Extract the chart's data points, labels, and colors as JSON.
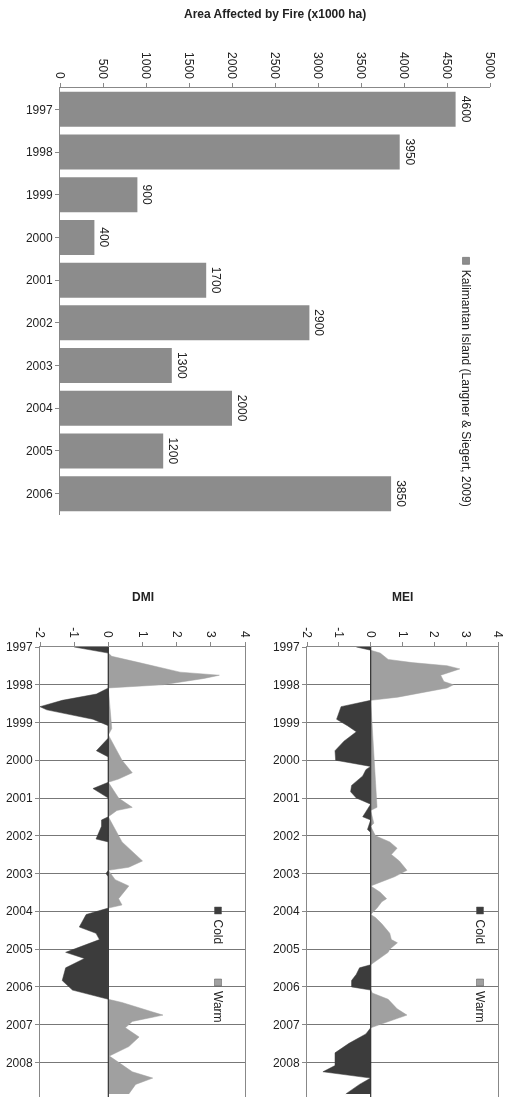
{
  "chart_data": [
    {
      "type": "bar",
      "title": "Area Affected by Fire (x1000 ha)",
      "orientation": "horizontal",
      "categories": [
        "1997",
        "1998",
        "1999",
        "2000",
        "2001",
        "2002",
        "2003",
        "2004",
        "2005",
        "2006"
      ],
      "series": [
        {
          "name": "Kalimantan Island (Langner & Siegert, 2009)",
          "color": "#8c8c8c",
          "values": [
            4600,
            3950,
            900,
            400,
            1700,
            2900,
            1300,
            2000,
            1200,
            3850
          ]
        }
      ],
      "xlim": [
        0,
        5000
      ],
      "xticks": [
        0,
        500,
        1000,
        1500,
        2000,
        2500,
        3000,
        3500,
        4000,
        4500,
        5000
      ],
      "data_labels": true,
      "legend": "right"
    },
    {
      "type": "area",
      "title": "MEI",
      "orientation": "horizontal",
      "series": [
        {
          "name": "Cold",
          "color": "#3c3c3c",
          "x": [
            "1997-01",
            "1997-02",
            "1998-06",
            "1998-08",
            "1998-12",
            "1999-02",
            "1999-04",
            "1999-07",
            "1999-10",
            "2000-01",
            "2000-03",
            "2000-04",
            "2000-06",
            "2000-09",
            "2000-11",
            "2001-01",
            "2001-03",
            "2001-07",
            "2001-08",
            "2001-11",
            "2001-12",
            "2005-06",
            "2005-07",
            "2005-09",
            "2005-11",
            "2006-01",
            "2006-02",
            "2007-02",
            "2007-04",
            "2007-07",
            "2007-10",
            "2008-02",
            "2008-04",
            "2008-06",
            "2008-08",
            "2008-11"
          ],
          "values": [
            -0.45,
            0,
            0,
            -0.93,
            -1.07,
            -0.73,
            -0.45,
            -0.84,
            -1.12,
            -1.1,
            0,
            -0.15,
            -0.25,
            -0.6,
            -0.63,
            -0.45,
            0,
            -0.25,
            0,
            -0.1,
            0,
            0,
            -0.35,
            -0.45,
            -0.6,
            -0.6,
            0,
            0,
            -0.15,
            -0.68,
            -1.12,
            -1.12,
            -1.5,
            0,
            -0.35,
            -0.78
          ]
        },
        {
          "name": "Warm",
          "color": "#a0a0a0",
          "x": [
            "1997-02",
            "1997-03",
            "1997-05",
            "1997-06",
            "1997-07",
            "1997-08",
            "1997-10",
            "1997-12",
            "1998-01",
            "1998-02",
            "1998-05",
            "1998-06",
            "2001-04",
            "2001-05",
            "2001-09",
            "2001-10",
            "2002-01",
            "2002-03",
            "2002-05",
            "2002-07",
            "2002-09",
            "2002-12",
            "2003-02",
            "2003-05",
            "2003-07",
            "2003-09",
            "2003-10",
            "2003-12",
            "2004-02",
            "2004-03",
            "2004-05",
            "2004-08",
            "2004-10",
            "2004-11",
            "2005-01",
            "2005-02",
            "2005-06",
            "2006-02",
            "2006-03",
            "2006-05",
            "2006-08",
            "2006-10",
            "2006-11",
            "2007-02"
          ],
          "values": [
            0,
            0.3,
            0.55,
            1.3,
            2.4,
            2.8,
            2.2,
            2.3,
            2.6,
            2.4,
            0.85,
            0,
            0.2,
            0,
            0.1,
            0,
            0.15,
            0.6,
            0.83,
            0.65,
            0.9,
            1.14,
            0.75,
            0,
            0.3,
            0.5,
            0.35,
            0.2,
            0,
            0.15,
            0.35,
            0.6,
            0.65,
            0.84,
            0.6,
            0.55,
            0,
            0,
            0.05,
            0.55,
            0.83,
            1.14,
            0.85,
            0
          ]
        }
      ],
      "xlim": [
        -2,
        4
      ],
      "xticks": [
        -2,
        -1,
        0,
        1,
        2,
        3,
        4
      ],
      "ylim": [
        "2008-12",
        "1997-01"
      ],
      "yticks": [
        "1997",
        "1998",
        "1999",
        "2000",
        "2001",
        "2002",
        "2003",
        "2004",
        "2005",
        "2006",
        "2007",
        "2008"
      ],
      "grid": "y",
      "legend": "right"
    },
    {
      "type": "area",
      "title": "DMI",
      "orientation": "horizontal",
      "series": [
        {
          "name": "Cold",
          "color": "#3c3c3c",
          "x": [
            "1997-01",
            "1997-03",
            "1998-02",
            "1998-04",
            "1998-06",
            "1998-08",
            "1998-09",
            "1998-12",
            "1999-02",
            "1999-06",
            "1999-10",
            "1999-12",
            "2000-08",
            "2000-10",
            "2001-01",
            "2001-07",
            "2001-08",
            "2001-10",
            "2002-02",
            "2002-03",
            "2002-12",
            "2003-01",
            "2003-02",
            "2003-12",
            "2004-02",
            "2004-06",
            "2004-08",
            "2004-10",
            "2005-02",
            "2005-04",
            "2005-07",
            "2005-11",
            "2006-02",
            "2006-05"
          ],
          "values": [
            -1.0,
            0,
            0,
            -0.35,
            -1.35,
            -2.0,
            -1.8,
            -0.45,
            0,
            0,
            -0.35,
            0,
            0,
            -0.45,
            0,
            0,
            -0.2,
            -0.2,
            -0.36,
            0,
            0,
            -0.07,
            0,
            0,
            -0.65,
            -0.85,
            -0.36,
            -0.26,
            -1.25,
            -0.7,
            -1.25,
            -1.35,
            -1.05,
            0
          ]
        },
        {
          "name": "Warm",
          "color": "#a0a0a0",
          "x": [
            "1997-03",
            "1997-04",
            "1997-06",
            "1997-09",
            "1997-10",
            "1997-11",
            "1998-01",
            "1998-02",
            "1999-03",
            "1999-05",
            "2000-01",
            "2000-05",
            "2000-07",
            "2000-08",
            "2001-01",
            "2001-04",
            "2001-05",
            "2001-07",
            "2002-03",
            "2002-09",
            "2002-11",
            "2002-12",
            "2003-03",
            "2003-05",
            "2003-09",
            "2003-11",
            "2003-12",
            "2006-05",
            "2006-06",
            "2006-09",
            "2006-10",
            "2006-12",
            "2007-02",
            "2007-05",
            "2007-08",
            "2007-11",
            "2008-01",
            "2008-04",
            "2008-06",
            "2008-08",
            "2008-11"
          ],
          "values": [
            0,
            0.1,
            0.9,
            2.1,
            3.25,
            2.8,
            1.6,
            0,
            0.1,
            0,
            0.4,
            0.7,
            0.3,
            0,
            0.3,
            0.7,
            0.25,
            0,
            0.4,
            1.0,
            0.6,
            0,
            0.2,
            0.6,
            0.3,
            0.4,
            0,
            0,
            0.4,
            1.3,
            1.6,
            0.7,
            0.5,
            0.9,
            0.6,
            0.03,
            0.3,
            0.7,
            1.3,
            0.8,
            0.6
          ]
        }
      ],
      "xlim": [
        -2,
        4
      ],
      "xticks": [
        -2,
        -1,
        0,
        1,
        2,
        3,
        4
      ],
      "ylim": [
        "2008-12",
        "1997-01"
      ],
      "yticks": [
        "1997",
        "1998",
        "1999",
        "2000",
        "2001",
        "2002",
        "2003",
        "2004",
        "2005",
        "2006",
        "2007",
        "2008"
      ],
      "grid": "y",
      "legend": "right"
    }
  ]
}
